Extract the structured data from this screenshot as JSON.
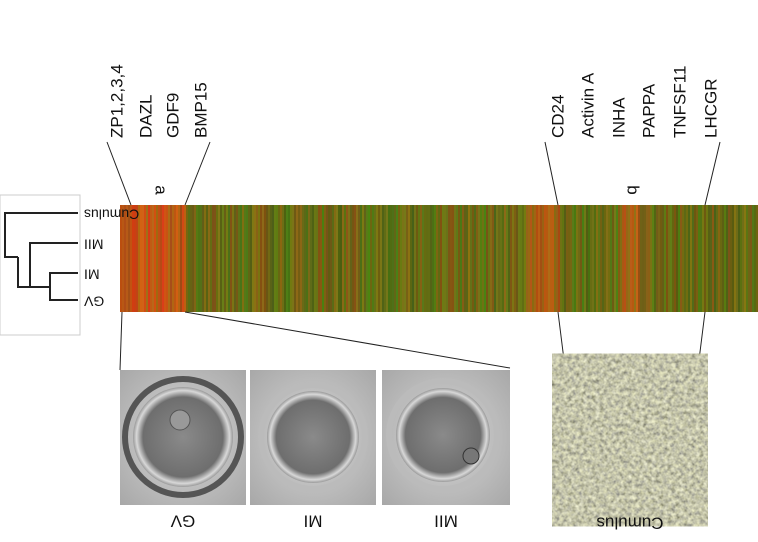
{
  "gene_groups": [
    {
      "region": "a",
      "genes": [
        "ZP1,2,3,4",
        "DAZL",
        "GDF9",
        "BMP15"
      ]
    },
    {
      "region": "b",
      "genes": [
        "CD24",
        "Activin A",
        "INHA",
        "PAPPA",
        "TNFSF11",
        "LHCGR"
      ]
    }
  ],
  "dendrogram": {
    "labels": [
      "Cumulus",
      "MII",
      "MI",
      "GV"
    ]
  },
  "images": [
    {
      "label": "GV"
    },
    {
      "label": "MI"
    },
    {
      "label": "MII"
    },
    {
      "label": "Cumulus"
    }
  ]
}
